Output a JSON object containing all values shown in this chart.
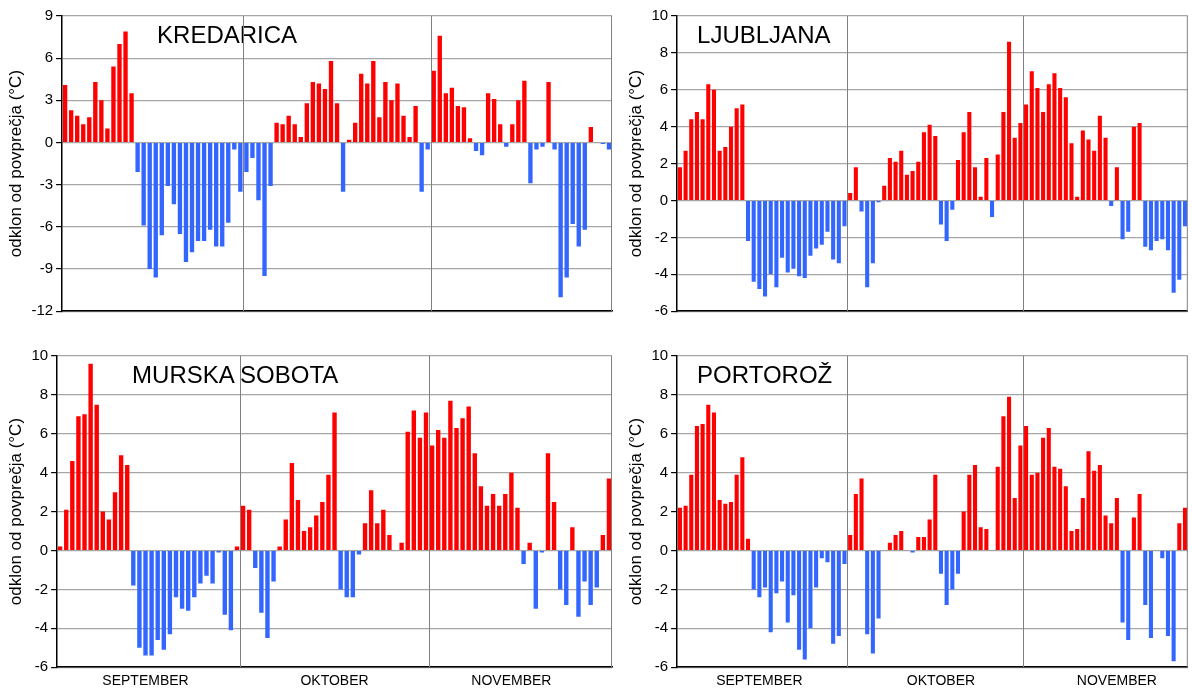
{
  "chart_data": [
    {
      "type": "bar",
      "title": "KREDARICA",
      "ylabel": "odklon od povprečja (°C)",
      "categories": [
        null,
        null,
        null,
        null,
        null,
        null,
        null,
        null,
        null,
        null,
        null,
        null,
        null,
        null,
        null,
        null,
        null,
        null,
        null,
        null,
        null,
        null,
        null,
        null,
        null,
        null,
        null,
        null,
        null,
        null,
        null,
        null,
        null,
        null,
        null,
        null,
        null,
        null,
        null,
        null,
        null,
        null,
        null,
        null,
        null,
        null,
        null,
        null,
        null,
        null,
        null,
        null,
        null,
        null,
        null,
        null,
        null,
        null,
        null,
        null,
        null,
        null,
        null,
        null,
        null,
        null,
        null,
        null,
        null,
        null,
        null,
        null,
        null,
        null,
        null,
        null,
        null,
        null,
        null,
        null,
        null,
        null,
        null,
        null,
        null,
        null,
        null,
        null,
        null,
        null,
        null
      ],
      "values": [
        4.1,
        2.3,
        1.9,
        1.3,
        1.8,
        4.3,
        3.0,
        1.0,
        5.4,
        7.0,
        7.9,
        3.5,
        -2.1,
        -5.9,
        -9.0,
        -9.6,
        -6.6,
        -3.1,
        -4.4,
        -6.5,
        -8.5,
        -7.8,
        -7.0,
        -7.0,
        -6.2,
        -7.4,
        -7.4,
        -5.7,
        -0.5,
        -3.5,
        -2.1,
        -1.1,
        -4.1,
        -9.5,
        -3.1,
        1.4,
        1.3,
        1.9,
        1.3,
        0.4,
        2.8,
        4.3,
        4.2,
        3.8,
        5.8,
        2.8,
        -3.5,
        0.2,
        1.4,
        4.9,
        4.2,
        5.8,
        1.8,
        4.3,
        3.0,
        4.2,
        1.9,
        0.4,
        2.6,
        -3.5,
        -0.5,
        5.1,
        7.6,
        3.5,
        3.9,
        2.6,
        2.5,
        0.3,
        -0.6,
        -0.9,
        3.5,
        3.1,
        1.3,
        -0.3,
        1.3,
        3.0,
        4.4,
        -2.9,
        -0.5,
        -0.3,
        4.3,
        -0.5,
        -11.0,
        -9.6,
        -5.8,
        -7.4,
        -6.2,
        1.1,
        0,
        -0.1,
        -0.5
      ],
      "colors": [
        "#ff0000",
        "#ff0000",
        "#ff0000",
        "#ff0000",
        "#ff0000",
        "#ff0000",
        "#ff0000",
        "#ff0000",
        "#ff0000",
        "#ff0000",
        "#ff0000",
        "#ff0000",
        "#3366ff",
        "#3366ff",
        "#3366ff",
        "#3366ff",
        "#3366ff",
        "#3366ff",
        "#3366ff",
        "#3366ff",
        "#3366ff",
        "#3366ff",
        "#3366ff",
        "#3366ff",
        "#3366ff",
        "#3366ff",
        "#3366ff",
        "#3366ff",
        "#3366ff",
        "#3366ff",
        "#3366ff",
        "#3366ff",
        "#3366ff",
        "#3366ff",
        "#3366ff",
        "#ff0000",
        "#ff0000",
        "#ff0000",
        "#ff0000",
        "#ff0000",
        "#ff0000",
        "#ff0000",
        "#ff0000",
        "#ff0000",
        "#ff0000",
        "#ff0000",
        "#3366ff",
        "#ff0000",
        "#ff0000",
        "#ff0000",
        "#ff0000",
        "#ff0000",
        "#ff0000",
        "#ff0000",
        "#ff0000",
        "#ff0000",
        "#ff0000",
        "#ff0000",
        "#ff0000",
        "#3366ff",
        "#3366ff",
        "#ff0000",
        "#ff0000",
        "#ff0000",
        "#ff0000",
        "#ff0000",
        "#ff0000",
        "#ff0000",
        "#3366ff",
        "#3366ff",
        "#ff0000",
        "#ff0000",
        "#ff0000",
        "#3366ff",
        "#ff0000",
        "#ff0000",
        "#ff0000",
        "#3366ff",
        "#3366ff",
        "#3366ff",
        "#ff0000",
        "#3366ff",
        "#3366ff",
        "#3366ff",
        "#3366ff",
        "#3366ff",
        "#3366ff",
        "#ff0000",
        "#ff0000",
        "#3366ff",
        "#3366ff"
      ],
      "ylim": [
        -12,
        9
      ],
      "yticks": [
        -12,
        -9,
        -6,
        -3,
        0,
        3,
        6,
        9
      ],
      "grid": "y"
    },
    {
      "type": "bar",
      "title": "LJUBLJANA",
      "ylabel": "odklon od povprečja (°C)",
      "categories": [
        null,
        null,
        null,
        null,
        null,
        null,
        null,
        null,
        null,
        null,
        null,
        null,
        null,
        null,
        null,
        null,
        null,
        null,
        null,
        null,
        null,
        null,
        null,
        null,
        null,
        null,
        null,
        null,
        null,
        null,
        null,
        null,
        null,
        null,
        null,
        null,
        null,
        null,
        null,
        null,
        null,
        null,
        null,
        null,
        null,
        null,
        null,
        null,
        null,
        null,
        null,
        null,
        null,
        null,
        null,
        null,
        null,
        null,
        null,
        null,
        null,
        null,
        null,
        null,
        null,
        null,
        null,
        null,
        null,
        null,
        null,
        null,
        null,
        null,
        null,
        null,
        null,
        null,
        null,
        null,
        null,
        null,
        null,
        null,
        null,
        null,
        null,
        null,
        null,
        null
      ],
      "values": [
        1.8,
        2.7,
        4.4,
        4.8,
        4.4,
        6.3,
        6.0,
        2.7,
        2.9,
        4.0,
        5.0,
        5.2,
        -2.2,
        -4.4,
        -4.8,
        -5.2,
        -4.0,
        -4.7,
        -3.1,
        -3.9,
        -3.7,
        -4.1,
        -4.2,
        -3.0,
        -2.6,
        -2.4,
        -1.7,
        -3.2,
        -3.4,
        -1.4,
        0.4,
        1.8,
        -0.6,
        -4.7,
        -3.4,
        -0.1,
        0.8,
        2.3,
        2.1,
        2.7,
        1.4,
        1.6,
        2.1,
        3.7,
        4.1,
        3.5,
        -1.3,
        -2.2,
        -0.5,
        2.2,
        3.7,
        4.8,
        1.8,
        0.2,
        2.3,
        -0.9,
        2.5,
        4.8,
        8.6,
        3.4,
        4.2,
        5.2,
        7.0,
        6.1,
        4.8,
        6.3,
        6.9,
        6.1,
        5.6,
        3.1,
        0.2,
        3.8,
        3.3,
        2.7,
        4.6,
        3.4,
        -0.3,
        1.8,
        -2.1,
        -1.7,
        4.0,
        4.2,
        -2.5,
        -2.7,
        -2.2,
        -2.1,
        -2.7,
        -5.0,
        -4.3,
        -1.4
      ],
      "colors": [
        "#ff0000",
        "#ff0000",
        "#ff0000",
        "#ff0000",
        "#ff0000",
        "#ff0000",
        "#ff0000",
        "#ff0000",
        "#ff0000",
        "#ff0000",
        "#ff0000",
        "#ff0000",
        "#3366ff",
        "#3366ff",
        "#3366ff",
        "#3366ff",
        "#3366ff",
        "#3366ff",
        "#3366ff",
        "#3366ff",
        "#3366ff",
        "#3366ff",
        "#3366ff",
        "#3366ff",
        "#3366ff",
        "#3366ff",
        "#3366ff",
        "#3366ff",
        "#3366ff",
        "#3366ff",
        "#ff0000",
        "#ff0000",
        "#3366ff",
        "#3366ff",
        "#3366ff",
        "#3366ff",
        "#ff0000",
        "#ff0000",
        "#ff0000",
        "#ff0000",
        "#ff0000",
        "#ff0000",
        "#ff0000",
        "#ff0000",
        "#ff0000",
        "#ff0000",
        "#3366ff",
        "#3366ff",
        "#3366ff",
        "#ff0000",
        "#ff0000",
        "#ff0000",
        "#ff0000",
        "#ff0000",
        "#ff0000",
        "#3366ff",
        "#ff0000",
        "#ff0000",
        "#ff0000",
        "#ff0000",
        "#ff0000",
        "#ff0000",
        "#ff0000",
        "#ff0000",
        "#ff0000",
        "#ff0000",
        "#ff0000",
        "#ff0000",
        "#ff0000",
        "#ff0000",
        "#ff0000",
        "#ff0000",
        "#ff0000",
        "#ff0000",
        "#ff0000",
        "#ff0000",
        "#3366ff",
        "#ff0000",
        "#3366ff",
        "#3366ff",
        "#ff0000",
        "#ff0000",
        "#3366ff",
        "#3366ff",
        "#3366ff",
        "#3366ff",
        "#3366ff",
        "#3366ff",
        "#3366ff",
        "#3366ff"
      ],
      "ylim": [
        -6,
        10
      ],
      "yticks": [
        -6,
        -4,
        -2,
        0,
        2,
        4,
        6,
        8,
        10
      ],
      "grid": "y"
    },
    {
      "type": "bar",
      "title": "MURSKA SOBOTA",
      "ylabel": "odklon od povprečja (°C)",
      "categories": [
        null,
        null,
        null,
        null,
        null,
        null,
        null,
        null,
        null,
        null,
        null,
        null,
        null,
        null,
        "SEPTEMBER",
        null,
        null,
        null,
        null,
        null,
        null,
        null,
        null,
        null,
        null,
        null,
        null,
        null,
        null,
        null,
        null,
        null,
        null,
        null,
        null,
        null,
        null,
        null,
        null,
        null,
        null,
        null,
        null,
        null,
        null,
        "OKTOBER",
        null,
        null,
        null,
        null,
        null,
        null,
        null,
        null,
        null,
        null,
        null,
        null,
        null,
        null,
        null,
        null,
        null,
        null,
        null,
        null,
        null,
        null,
        null,
        null,
        null,
        null,
        null,
        null,
        "NOVEMBER",
        null,
        null,
        null,
        null,
        null,
        null,
        null,
        null,
        null,
        null,
        null,
        null,
        null,
        null,
        null,
        null
      ],
      "values": [
        0.2,
        2.1,
        4.6,
        6.9,
        7.0,
        9.6,
        7.5,
        2.0,
        1.6,
        3.0,
        4.9,
        4.4,
        -1.8,
        -5.0,
        -5.4,
        -5.4,
        -4.6,
        -5.1,
        -4.3,
        -2.4,
        -3.0,
        -3.1,
        -2.4,
        -1.7,
        -1.3,
        -1.7,
        -0.1,
        -3.3,
        -4.1,
        0.2,
        2.3,
        2.1,
        -0.9,
        -3.2,
        -4.5,
        -1.6,
        0.2,
        1.6,
        4.5,
        2.6,
        1.0,
        1.2,
        1.8,
        2.5,
        3.9,
        7.1,
        -2.0,
        -2.4,
        -2.4,
        -0.2,
        1.4,
        3.1,
        1.4,
        2.1,
        0.8,
        0,
        0.4,
        6.1,
        7.2,
        5.8,
        7.1,
        5.4,
        6.2,
        5.8,
        7.7,
        6.3,
        6.8,
        7.4,
        5.0,
        3.3,
        2.3,
        2.9,
        2.3,
        2.9,
        4.0,
        2.2,
        -0.7,
        0.4,
        -3.0,
        -0.1,
        5.0,
        2.5,
        -2.0,
        -2.8,
        1.2,
        -3.4,
        -1.6,
        -2.8,
        -1.9,
        0.8,
        3.7
      ],
      "colors": [
        "#ff0000",
        "#ff0000",
        "#ff0000",
        "#ff0000",
        "#ff0000",
        "#ff0000",
        "#ff0000",
        "#ff0000",
        "#ff0000",
        "#ff0000",
        "#ff0000",
        "#ff0000",
        "#3366ff",
        "#3366ff",
        "#3366ff",
        "#3366ff",
        "#3366ff",
        "#3366ff",
        "#3366ff",
        "#3366ff",
        "#3366ff",
        "#3366ff",
        "#3366ff",
        "#3366ff",
        "#3366ff",
        "#3366ff",
        "#3366ff",
        "#3366ff",
        "#3366ff",
        "#ff0000",
        "#ff0000",
        "#ff0000",
        "#3366ff",
        "#3366ff",
        "#3366ff",
        "#3366ff",
        "#ff0000",
        "#ff0000",
        "#ff0000",
        "#ff0000",
        "#ff0000",
        "#ff0000",
        "#ff0000",
        "#ff0000",
        "#ff0000",
        "#ff0000",
        "#3366ff",
        "#3366ff",
        "#3366ff",
        "#3366ff",
        "#ff0000",
        "#ff0000",
        "#ff0000",
        "#ff0000",
        "#ff0000",
        "#ff0000",
        "#ff0000",
        "#ff0000",
        "#ff0000",
        "#ff0000",
        "#ff0000",
        "#ff0000",
        "#ff0000",
        "#ff0000",
        "#ff0000",
        "#ff0000",
        "#ff0000",
        "#ff0000",
        "#ff0000",
        "#ff0000",
        "#ff0000",
        "#ff0000",
        "#ff0000",
        "#ff0000",
        "#ff0000",
        "#ff0000",
        "#3366ff",
        "#ff0000",
        "#3366ff",
        "#3366ff",
        "#ff0000",
        "#ff0000",
        "#3366ff",
        "#3366ff",
        "#ff0000",
        "#3366ff",
        "#3366ff",
        "#3366ff",
        "#3366ff",
        "#ff0000",
        "#ff0000"
      ],
      "ylim": [
        -6,
        10
      ],
      "yticks": [
        -6,
        -4,
        -2,
        0,
        2,
        4,
        6,
        8,
        10
      ],
      "grid": "y"
    },
    {
      "type": "bar",
      "title": "PORTOROŽ",
      "ylabel": "odklon od povprečja (°C)",
      "categories": [
        null,
        null,
        null,
        null,
        null,
        null,
        null,
        null,
        null,
        null,
        null,
        null,
        null,
        null,
        "SEPTEMBER",
        null,
        null,
        null,
        null,
        null,
        null,
        null,
        null,
        null,
        null,
        null,
        null,
        null,
        null,
        null,
        null,
        null,
        null,
        null,
        null,
        null,
        null,
        null,
        null,
        null,
        null,
        null,
        null,
        null,
        null,
        null,
        "OKTOBER",
        null,
        null,
        null,
        null,
        null,
        null,
        null,
        null,
        null,
        null,
        null,
        null,
        null,
        null,
        null,
        null,
        null,
        null,
        null,
        null,
        null,
        null,
        null,
        null,
        null,
        null,
        null,
        null,
        null,
        null,
        "NOVEMBER",
        null,
        null,
        null,
        null,
        null,
        null,
        null,
        null,
        null,
        null,
        null,
        null
      ],
      "values": [
        2.2,
        2.3,
        3.9,
        6.4,
        6.5,
        7.5,
        7.1,
        2.6,
        2.4,
        2.5,
        3.9,
        4.8,
        0.6,
        -2.0,
        -2.4,
        -1.9,
        -4.2,
        -2.2,
        -1.6,
        -3.7,
        -2.3,
        -5.1,
        -5.6,
        -4.0,
        -1.9,
        -0.4,
        -0.6,
        -4.8,
        -4.4,
        -0.7,
        0.8,
        2.9,
        3.7,
        -4.3,
        -5.3,
        -3.5,
        0,
        0.4,
        0.8,
        1.0,
        0,
        -0.1,
        0.7,
        0.7,
        1.6,
        3.9,
        -1.2,
        -2.8,
        -2.0,
        -1.2,
        2.0,
        3.9,
        4.4,
        1.2,
        1.1,
        0,
        4.3,
        6.9,
        7.9,
        2.7,
        5.4,
        6.4,
        3.9,
        4.0,
        5.8,
        6.3,
        4.3,
        4.2,
        3.3,
        1.0,
        1.1,
        2.7,
        5.1,
        4.1,
        4.4,
        1.8,
        1.4,
        2.7,
        -3.7,
        -4.6,
        1.7,
        2.9,
        -2.8,
        -4.5,
        0,
        -0.4,
        -4.4,
        -5.7,
        1.4,
        2.2
      ],
      "colors": [
        "#ff0000",
        "#ff0000",
        "#ff0000",
        "#ff0000",
        "#ff0000",
        "#ff0000",
        "#ff0000",
        "#ff0000",
        "#ff0000",
        "#ff0000",
        "#ff0000",
        "#ff0000",
        "#ff0000",
        "#3366ff",
        "#3366ff",
        "#3366ff",
        "#3366ff",
        "#3366ff",
        "#3366ff",
        "#3366ff",
        "#3366ff",
        "#3366ff",
        "#3366ff",
        "#3366ff",
        "#3366ff",
        "#3366ff",
        "#3366ff",
        "#3366ff",
        "#3366ff",
        "#3366ff",
        "#ff0000",
        "#ff0000",
        "#ff0000",
        "#3366ff",
        "#3366ff",
        "#3366ff",
        "#ff0000",
        "#ff0000",
        "#ff0000",
        "#ff0000",
        "#ff0000",
        "#3366ff",
        "#ff0000",
        "#ff0000",
        "#ff0000",
        "#ff0000",
        "#3366ff",
        "#3366ff",
        "#3366ff",
        "#3366ff",
        "#ff0000",
        "#ff0000",
        "#ff0000",
        "#ff0000",
        "#ff0000",
        "#ff0000",
        "#ff0000",
        "#ff0000",
        "#ff0000",
        "#ff0000",
        "#ff0000",
        "#ff0000",
        "#ff0000",
        "#ff0000",
        "#ff0000",
        "#ff0000",
        "#ff0000",
        "#ff0000",
        "#ff0000",
        "#ff0000",
        "#ff0000",
        "#ff0000",
        "#ff0000",
        "#ff0000",
        "#ff0000",
        "#ff0000",
        "#ff0000",
        "#ff0000",
        "#3366ff",
        "#3366ff",
        "#ff0000",
        "#ff0000",
        "#3366ff",
        "#3366ff",
        "#ff0000",
        "#3366ff",
        "#3366ff",
        "#3366ff",
        "#ff0000",
        "#ff0000"
      ],
      "ylim": [
        -6,
        10
      ],
      "yticks": [
        -6,
        -4,
        -2,
        0,
        2,
        4,
        6,
        8,
        10
      ],
      "grid": "y"
    }
  ]
}
